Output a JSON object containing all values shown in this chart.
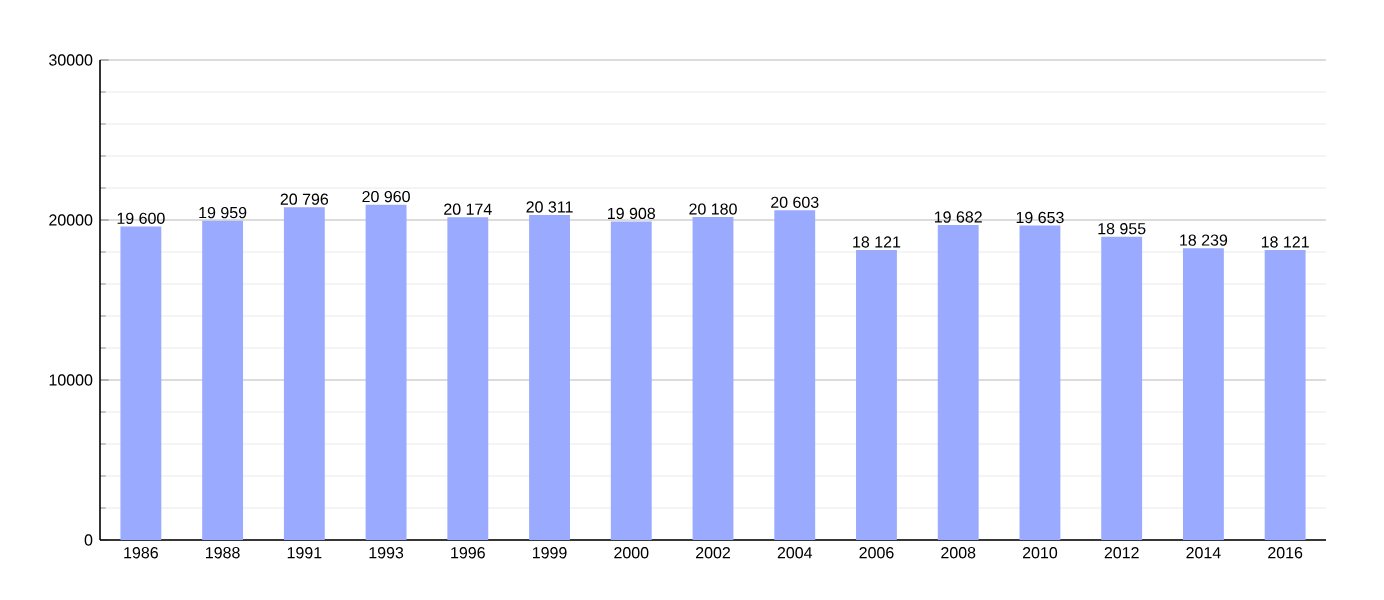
{
  "chart_data": {
    "type": "bar",
    "categories": [
      "1986",
      "1988",
      "1991",
      "1993",
      "1996",
      "1999",
      "2000",
      "2002",
      "2004",
      "2006",
      "2008",
      "2010",
      "2012",
      "2014",
      "2016"
    ],
    "values": [
      19600,
      19959,
      20796,
      20960,
      20174,
      20311,
      19908,
      20180,
      20603,
      18121,
      19682,
      19653,
      18955,
      18239,
      18121
    ],
    "value_labels": [
      "19 600",
      "19 959",
      "20 796",
      "20 960",
      "20 174",
      "20 311",
      "19 908",
      "20 180",
      "20 603",
      "18 121",
      "19 682",
      "19 653",
      "18 955",
      "18 239",
      "18 121"
    ],
    "color": "#99aaff",
    "ylim": [
      0,
      30000
    ],
    "yticks": [
      0,
      10000,
      20000,
      30000
    ],
    "grid": "y"
  }
}
